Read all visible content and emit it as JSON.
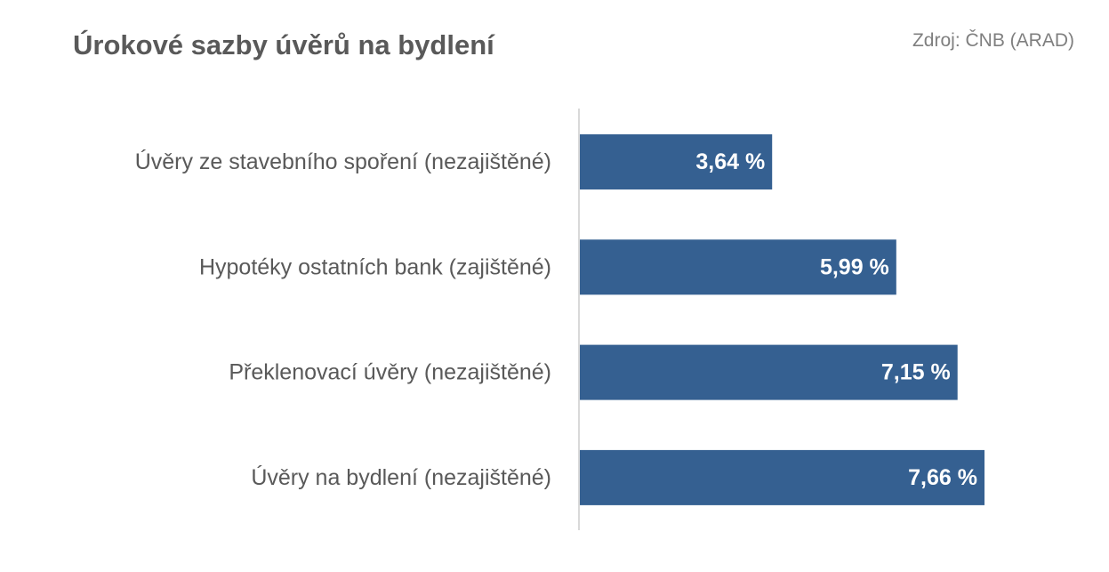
{
  "title": "Úrokové sazby úvěrů na bydlení",
  "source": "Zdroj: ČNB (ARAD)",
  "colors": {
    "bar": "#356091",
    "axis": "#d9d9d9",
    "title": "#595959",
    "source": "#7f7f7f",
    "value_text": "#ffffff"
  },
  "chart_data": {
    "type": "bar",
    "orientation": "horizontal",
    "title": "Úrokové sazby úvěrů na bydlení",
    "categories": [
      "Úvěry ze stavebního spoření (nezajištěné)",
      "Hypotéky ostatních bank (zajištěné)",
      "Překlenovací úvěry (nezajištěné)",
      "Úvěry na bydlení (nezajištěné)"
    ],
    "values": [
      3.64,
      5.99,
      7.15,
      7.66
    ],
    "value_labels": [
      "3,64 %",
      "5,99 %",
      "7,15 %",
      "7,66 %"
    ],
    "unit": "%",
    "xlim": [
      0,
      10
    ],
    "grid": false,
    "legend": "none"
  }
}
